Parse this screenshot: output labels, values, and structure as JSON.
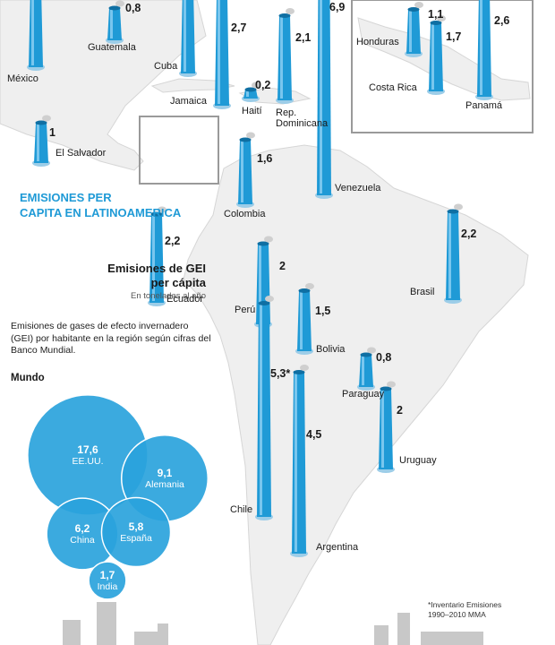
{
  "title_lines": [
    "EMISIONES PER",
    "CAPITA EN LATINOAMERICA"
  ],
  "legend": {
    "heading_lines": [
      "Emisiones de GEI",
      "per cápita"
    ],
    "unit": "En toneladas al año"
  },
  "description": "Emisiones de gases de efecto invernadero (GEI) por habitante en la región según cifras del Banco Mundial.",
  "world_label": "Mundo",
  "footnote_lines": [
    "*Inventario Emisiones",
    "1990–2010 MMA"
  ],
  "colors": {
    "chimney": "#1f9ad6",
    "bubble": "#2aa3dc",
    "map_land": "#efefef",
    "title": "#1f9ad6"
  },
  "chart_data": [
    {
      "type": "bar",
      "unit": "t/año",
      "categories": [
        "México",
        "Guatemala",
        "Cuba",
        "Jamaica",
        "Haití",
        "Rep. Dominicana",
        "Venezuela",
        "Honduras",
        "Costa Rica",
        "Panamá",
        "El Salvador",
        "Colombia",
        "Ecuador",
        "Perú",
        "Brasil",
        "Bolivia",
        "Paraguay",
        "Chile",
        "Argentina",
        "Uruguay"
      ],
      "labels": [
        "México",
        "Guatemala",
        "Cuba",
        "Jamaica",
        "Haití",
        "Rep. Dominicana",
        "Venezuela",
        "Honduras",
        "Costa Rica",
        "Panamá",
        "El Salvador",
        "Colombia",
        "Ecuador",
        "Perú",
        "Brasil",
        "Bolivia",
        "Paraguay",
        "Chile",
        "Argentina",
        "Uruguay"
      ],
      "value_labels": [
        null,
        "0,8",
        null,
        "2,7",
        "0,2",
        "2,1",
        "6,9",
        "1,1",
        "1,7",
        "2,6",
        "1",
        "1,6",
        "2,2",
        "2",
        "2,2",
        "1,5",
        "0,8",
        "5,3*",
        "4,5",
        "2"
      ],
      "values": [
        null,
        0.8,
        null,
        2.7,
        0.2,
        2.1,
        6.9,
        1.1,
        1.7,
        2.6,
        1,
        1.6,
        2.2,
        2,
        2.2,
        1.5,
        0.8,
        5.3,
        4.5,
        2
      ]
    },
    {
      "type": "bubble",
      "title": "Mundo",
      "categories": [
        "EE.UU.",
        "Alemania",
        "China",
        "España",
        "India"
      ],
      "value_labels": [
        "17,6",
        "9,1",
        "6,2",
        "5,8",
        "1,7"
      ],
      "values": [
        17.6,
        9.1,
        6.2,
        5.8,
        1.7
      ]
    }
  ]
}
